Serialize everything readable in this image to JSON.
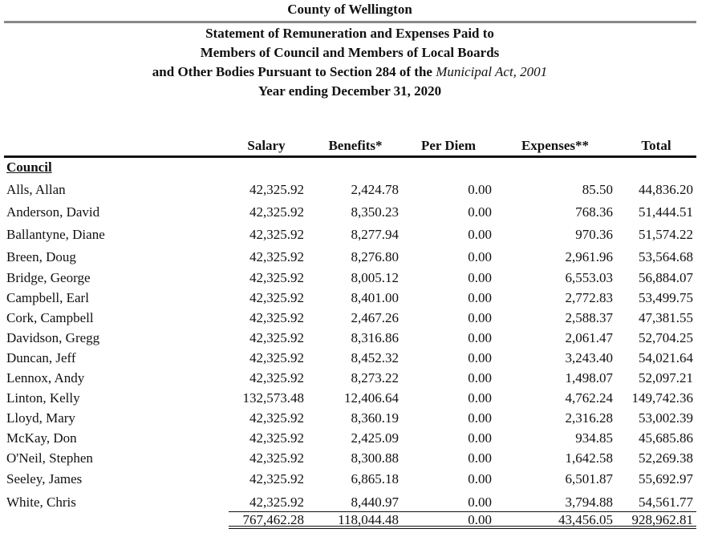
{
  "header": {
    "title": "County of Wellington",
    "lines": [
      "Statement of Remuneration and Expenses Paid to",
      "Members of Council and Members of Local Boards"
    ],
    "line3": "and Other Bodies Pursuant to Section 284 of the",
    "line3_italic": "Municipal Act, 2001",
    "line4": "Year ending December 31, 2020"
  },
  "table": {
    "columns": [
      "Salary",
      "Benefits*",
      "Per Diem",
      "Expenses**",
      "Total"
    ],
    "section": "Council",
    "rows": [
      [
        "Alls, Allan",
        "42,325.92",
        "2,424.78",
        "0.00",
        "85.50",
        "44,836.20"
      ],
      [
        "Anderson, David",
        "42,325.92",
        "8,350.23",
        "0.00",
        "768.36",
        "51,444.51"
      ],
      [
        "Ballantyne, Diane",
        "42,325.92",
        "8,277.94",
        "0.00",
        "970.36",
        "51,574.22"
      ],
      [
        "Breen, Doug",
        "42,325.92",
        "8,276.80",
        "0.00",
        "2,961.96",
        "53,564.68"
      ],
      [
        "Bridge, George",
        "42,325.92",
        "8,005.12",
        "0.00",
        "6,553.03",
        "56,884.07"
      ],
      [
        "Campbell, Earl",
        "42,325.92",
        "8,401.00",
        "0.00",
        "2,772.83",
        "53,499.75"
      ],
      [
        "Cork, Campbell",
        "42,325.92",
        "2,467.26",
        "0.00",
        "2,588.37",
        "47,381.55"
      ],
      [
        "Davidson, Gregg",
        "42,325.92",
        "8,316.86",
        "0.00",
        "2,061.47",
        "52,704.25"
      ],
      [
        "Duncan, Jeff",
        "42,325.92",
        "8,452.32",
        "0.00",
        "3,243.40",
        "54,021.64"
      ],
      [
        "Lennox, Andy",
        "42,325.92",
        "8,273.22",
        "0.00",
        "1,498.07",
        "52,097.21"
      ],
      [
        "Linton, Kelly",
        "132,573.48",
        "12,406.64",
        "0.00",
        "4,762.24",
        "149,742.36"
      ],
      [
        "Lloyd, Mary",
        "42,325.92",
        "8,360.19",
        "0.00",
        "2,316.28",
        "53,002.39"
      ],
      [
        "McKay, Don",
        "42,325.92",
        "2,425.09",
        "0.00",
        "934.85",
        "45,685.86"
      ],
      [
        "O'Neil, Stephen",
        "42,325.92",
        "8,300.88",
        "0.00",
        "1,642.58",
        "52,269.38"
      ],
      [
        "Seeley, James",
        "42,325.92",
        "6,865.18",
        "0.00",
        "6,501.87",
        "55,692.97"
      ],
      [
        "White, Chris",
        "42,325.92",
        "8,440.97",
        "0.00",
        "3,794.88",
        "54,561.77"
      ]
    ],
    "totals": [
      "767,462.28",
      "118,044.48",
      "0.00",
      "43,456.05",
      "928,962.81"
    ]
  }
}
